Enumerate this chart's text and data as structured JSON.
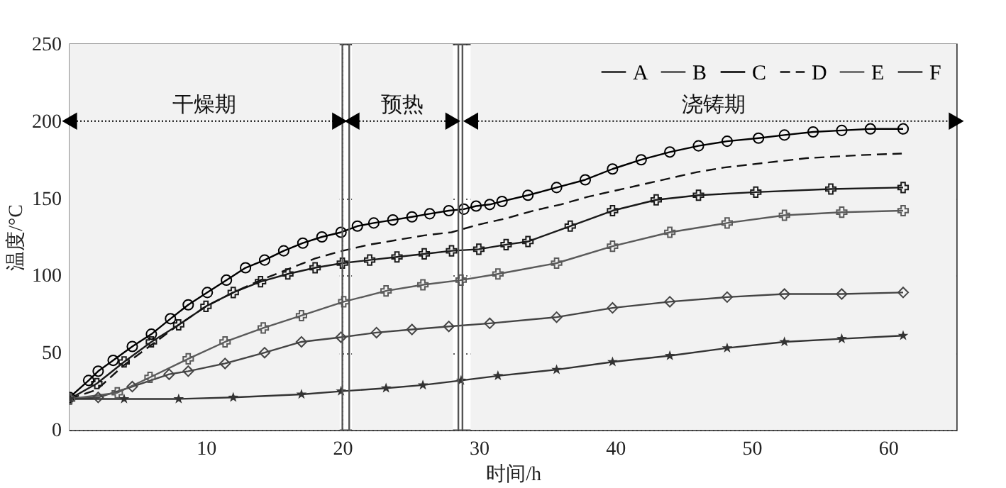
{
  "chart_data": {
    "type": "line",
    "xlabel": "时间/h",
    "ylabel": "温度/°C",
    "xlim": [
      0,
      65
    ],
    "xticks": [
      10,
      20,
      30,
      40,
      50,
      60
    ],
    "ylim": [
      0,
      250
    ],
    "yticks": [
      0,
      50,
      100,
      150,
      200,
      250
    ],
    "grid": true,
    "legend": "top right",
    "ref_lines": [
      {
        "axis": "x",
        "value": 20,
        "label": null,
        "color": "#555555"
      },
      {
        "axis": "x",
        "value": 20.5,
        "label": null,
        "color": "#555555"
      },
      {
        "axis": "x",
        "value": 28.5,
        "label": null,
        "color": "#555555"
      },
      {
        "axis": "x",
        "value": 28.8,
        "label": null,
        "color": "#555555"
      }
    ],
    "bands": [
      {
        "axis": "x",
        "from": 0,
        "to": 19.8,
        "label": "干燥期",
        "color": "#f2f2f2"
      },
      {
        "axis": "x",
        "from": 20.7,
        "to": 28.1,
        "label": "预热",
        "color": "#f2f2f2"
      },
      {
        "axis": "x",
        "from": 29.4,
        "to": 65,
        "label": "浇铸期",
        "color": "#f2f2f2"
      }
    ],
    "series": [
      {
        "name": "A",
        "color": "#1a1a1a",
        "marker": "cross",
        "line_style": "solid",
        "x": [
          0,
          2,
          4,
          6,
          8,
          10,
          12,
          14,
          16,
          18,
          20,
          22,
          24,
          26,
          28,
          30,
          32,
          33.6,
          36.7,
          39.8,
          43,
          46.1,
          50.3,
          55.8,
          61.1
        ],
        "values": [
          20,
          30,
          44,
          57,
          68,
          80,
          89,
          96,
          101,
          105,
          108,
          110,
          112,
          114,
          116,
          117,
          120,
          122,
          132,
          142,
          149,
          152,
          154,
          156,
          157
        ]
      },
      {
        "name": "B",
        "color": "#444444",
        "marker": "diamond",
        "line_style": "solid",
        "x": [
          0,
          2.1,
          4.6,
          7.3,
          8.7,
          11.4,
          14.3,
          17,
          19.9,
          22.5,
          25.1,
          27.8,
          30.8,
          35.7,
          39.8,
          44,
          48.2,
          52.4,
          56.6,
          61.1
        ],
        "values": [
          20,
          21,
          28,
          36,
          38,
          43,
          50,
          57,
          60,
          63,
          65,
          67,
          69,
          73,
          79,
          83,
          86,
          88,
          88,
          89
        ]
      },
      {
        "name": "C",
        "color": "#000000",
        "marker": "circle",
        "line_style": "solid",
        "x": [
          0,
          1.4,
          2.1,
          3.2,
          4.6,
          6,
          7.4,
          8.7,
          10.1,
          11.5,
          12.9,
          14.3,
          15.7,
          17.1,
          18.5,
          19.9,
          21.1,
          22.3,
          23.7,
          25.1,
          26.4,
          27.8,
          28.9,
          29.8,
          30.8,
          31.7,
          33.6,
          35.7,
          37.8,
          39.8,
          41.9,
          44,
          46.1,
          48.2,
          50.5,
          52.4,
          54.5,
          56.6,
          58.7,
          61.1
        ],
        "values": [
          21,
          32,
          38,
          45,
          54,
          62,
          72,
          81,
          89,
          97,
          105,
          110,
          116,
          121,
          125,
          128,
          132,
          134,
          136,
          138,
          140,
          142,
          143,
          145,
          146,
          148,
          152,
          157,
          162,
          169,
          175,
          180,
          184,
          187,
          189,
          191,
          193,
          194,
          195,
          195
        ]
      },
      {
        "name": "D",
        "color": "#111111",
        "marker": "none",
        "line_style": "dashed",
        "x": [
          0,
          2,
          4,
          6,
          8,
          10,
          12,
          14,
          16,
          18,
          20,
          22,
          24,
          26,
          28,
          30,
          32,
          34,
          36,
          38,
          40,
          42,
          44,
          46,
          48,
          50,
          52,
          54,
          56,
          58,
          61
        ],
        "values": [
          20,
          26,
          42,
          55,
          68,
          80,
          89,
          97,
          104,
          111,
          116,
          120,
          123,
          126,
          128,
          133,
          137,
          142,
          146,
          151,
          155,
          159,
          163,
          167,
          170,
          172,
          174,
          176,
          177,
          178,
          179
        ]
      },
      {
        "name": "E",
        "color": "#5a5a5a",
        "marker": "cross",
        "line_style": "solid",
        "x": [
          0,
          3.5,
          5.9,
          8.7,
          11.4,
          14.2,
          17,
          20.1,
          23.2,
          25.9,
          28.7,
          31.4,
          35.7,
          39.8,
          44,
          48.2,
          52.4,
          56.6,
          61.1
        ],
        "values": [
          20,
          24,
          34,
          46,
          57,
          66,
          74,
          83,
          90,
          94,
          97,
          101,
          108,
          119,
          128,
          134,
          139,
          141,
          142
        ]
      },
      {
        "name": "F",
        "color": "#333333",
        "marker": "star",
        "line_style": "solid",
        "x": [
          0,
          4,
          8,
          12,
          17,
          19.9,
          23.2,
          25.9,
          28.7,
          31.4,
          35.7,
          39.8,
          44,
          48.2,
          52.4,
          56.6,
          61.1
        ],
        "values": [
          20,
          20,
          20,
          21,
          23,
          25,
          27,
          29,
          32,
          35,
          39,
          44,
          48,
          53,
          57,
          59,
          61
        ]
      }
    ]
  }
}
